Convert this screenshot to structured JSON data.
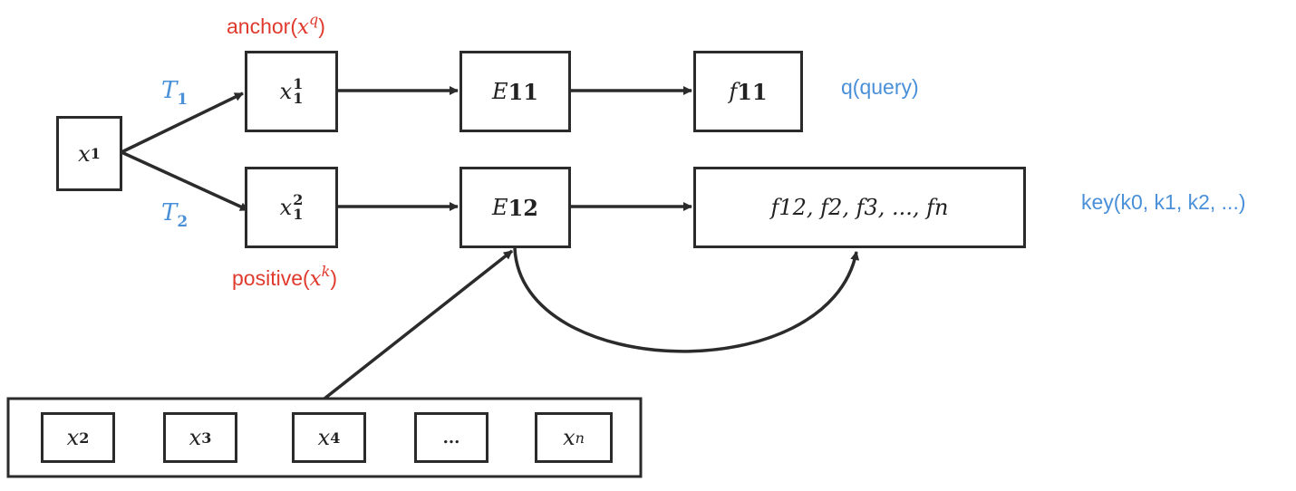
{
  "labels": {
    "anchor_text": "anchor(",
    "anchor_var": "x",
    "anchor_sup": "q",
    "anchor_close": ")",
    "positive_text": "positive(",
    "positive_var": "x",
    "positive_sup": "k",
    "positive_close": ")",
    "query": "q(query)",
    "key": "key(k0, k1, k2, ...)"
  },
  "transforms": {
    "t1_var": "T",
    "t1_sub": "1",
    "t2_var": "T",
    "t2_sub": "2"
  },
  "nodes": {
    "x1_var": "x",
    "x1_sub": "1",
    "x11_var": "x",
    "x11_top": "1",
    "x11_bottom": "1",
    "x12_var": "x",
    "x12_top": "2",
    "x12_bottom": "1",
    "e11_var": "E",
    "e11_num": "11",
    "e12_var": "E",
    "e12_num": "12",
    "f11_var": "f",
    "f11_num": "11",
    "keys_row": "f12, f2, f3, ..., fn"
  },
  "bank": [
    {
      "var": "x",
      "sub": "2"
    },
    {
      "var": "x",
      "sub": "3"
    },
    {
      "var": "x",
      "sub": "4"
    },
    {
      "var": "",
      "sub": "..."
    },
    {
      "var": "x",
      "sub": "n"
    }
  ]
}
